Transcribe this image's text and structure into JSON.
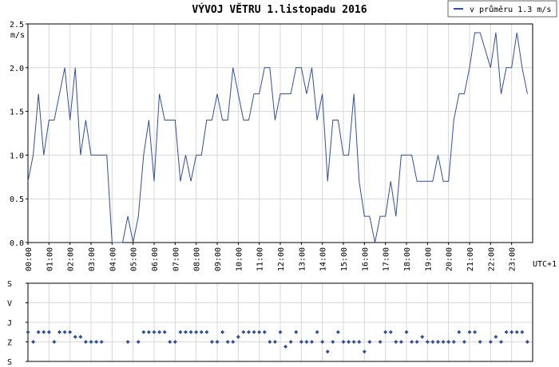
{
  "chart_data": [
    {
      "type": "line",
      "title": "VÝVOJ VĚTRU  1.listopadu 2016",
      "y_label": "m/s",
      "x_label": "UTC+1",
      "x": [
        0,
        0.25,
        0.5,
        0.75,
        1,
        1.25,
        1.5,
        1.75,
        2,
        2.25,
        2.5,
        2.75,
        3,
        3.25,
        3.5,
        3.75,
        4,
        4.25,
        4.5,
        4.75,
        5,
        5.25,
        5.5,
        5.75,
        6,
        6.25,
        6.5,
        6.75,
        7,
        7.25,
        7.5,
        7.75,
        8,
        8.25,
        8.5,
        8.75,
        9,
        9.25,
        9.5,
        9.75,
        10,
        10.25,
        10.5,
        10.75,
        11,
        11.25,
        11.5,
        11.75,
        12,
        12.25,
        12.5,
        12.75,
        13,
        13.25,
        13.5,
        13.75,
        14,
        14.25,
        14.5,
        14.75,
        15,
        15.25,
        15.5,
        15.75,
        16,
        16.25,
        16.5,
        16.75,
        17,
        17.25,
        17.5,
        17.75,
        18,
        18.25,
        18.5,
        18.75,
        19,
        19.25,
        19.5,
        19.75,
        20,
        20.25,
        20.5,
        20.75,
        21,
        21.25,
        21.5,
        21.75,
        22,
        22.25,
        22.5,
        22.75,
        23,
        23.25,
        23.5,
        23.75
      ],
      "series": [
        {
          "name": "v průměru 1.3 m/s",
          "color": "#2f4f9f",
          "values": [
            0.7,
            1.0,
            1.7,
            1.0,
            1.4,
            1.4,
            1.7,
            2.0,
            1.4,
            2.0,
            1.0,
            1.4,
            1.0,
            1.0,
            1.0,
            1.0,
            0.0,
            0.0,
            0.0,
            0.3,
            0.0,
            0.3,
            1.0,
            1.4,
            0.7,
            1.7,
            1.4,
            1.4,
            1.4,
            0.7,
            1.0,
            0.7,
            1.0,
            1.0,
            1.4,
            1.4,
            1.7,
            1.4,
            1.4,
            2.0,
            1.7,
            1.4,
            1.4,
            1.7,
            1.7,
            2.0,
            2.0,
            1.4,
            1.7,
            1.7,
            1.7,
            2.0,
            2.0,
            1.7,
            2.0,
            1.4,
            1.7,
            0.7,
            1.4,
            1.4,
            1.0,
            1.0,
            1.7,
            0.7,
            0.3,
            0.3,
            0.0,
            0.3,
            0.3,
            0.7,
            0.3,
            1.0,
            1.0,
            1.0,
            0.7,
            0.7,
            0.7,
            0.7,
            1.0,
            0.7,
            0.7,
            1.4,
            1.7,
            1.7,
            2.0,
            2.4,
            2.4,
            2.2,
            2.0,
            2.4,
            1.7,
            2.0,
            2.0,
            2.4,
            2.0,
            1.7
          ]
        }
      ],
      "xlim": [
        0,
        24
      ],
      "xticks": [
        {
          "value": 0,
          "label": "00:00"
        },
        {
          "value": 1,
          "label": "01:00"
        },
        {
          "value": 2,
          "label": "02:00"
        },
        {
          "value": 3,
          "label": "03:00"
        },
        {
          "value": 4,
          "label": "04:00"
        },
        {
          "value": 5,
          "label": "05:00"
        },
        {
          "value": 6,
          "label": "06:00"
        },
        {
          "value": 7,
          "label": "07:00"
        },
        {
          "value": 8,
          "label": "08:00"
        },
        {
          "value": 9,
          "label": "09:00"
        },
        {
          "value": 10,
          "label": "10:00"
        },
        {
          "value": 11,
          "label": "11:00"
        },
        {
          "value": 12,
          "label": "12:00"
        },
        {
          "value": 13,
          "label": "13:00"
        },
        {
          "value": 14,
          "label": "14:00"
        },
        {
          "value": 15,
          "label": "15:00"
        },
        {
          "value": 16,
          "label": "16:00"
        },
        {
          "value": 17,
          "label": "17:00"
        },
        {
          "value": 18,
          "label": "18:00"
        },
        {
          "value": 19,
          "label": "19:00"
        },
        {
          "value": 20,
          "label": "20:00"
        },
        {
          "value": 21,
          "label": "21:00"
        },
        {
          "value": 22,
          "label": "22:00"
        },
        {
          "value": 23,
          "label": "23:00"
        }
      ],
      "ylim": [
        0,
        2.5
      ],
      "yticks": [
        {
          "value": 0,
          "label": "0.0"
        },
        {
          "value": 0.5,
          "label": "0.5"
        },
        {
          "value": 1,
          "label": "1.0"
        },
        {
          "value": 1.5,
          "label": "1.5"
        },
        {
          "value": 2,
          "label": "2.0"
        },
        {
          "value": 2.5,
          "label": "2.5"
        }
      ],
      "grid": true,
      "legend": "top-right"
    },
    {
      "type": "scatter",
      "x": [
        0,
        0.25,
        0.5,
        0.75,
        1,
        1.25,
        1.5,
        1.75,
        2,
        2.25,
        2.5,
        2.75,
        3,
        3.25,
        3.5,
        3.75,
        4,
        4.25,
        4.5,
        4.75,
        5,
        5.25,
        5.5,
        5.75,
        6,
        6.25,
        6.5,
        6.75,
        7,
        7.25,
        7.5,
        7.75,
        8,
        8.25,
        8.5,
        8.75,
        9,
        9.25,
        9.5,
        9.75,
        10,
        10.25,
        10.5,
        10.75,
        11,
        11.25,
        11.5,
        11.75,
        12,
        12.25,
        12.5,
        12.75,
        13,
        13.25,
        13.5,
        13.75,
        14,
        14.25,
        14.5,
        14.75,
        15,
        15.25,
        15.5,
        15.75,
        16,
        16.25,
        16.5,
        16.75,
        17,
        17.25,
        17.5,
        17.75,
        18,
        18.25,
        18.5,
        18.75,
        19,
        19.25,
        19.5,
        19.75,
        20,
        20.25,
        20.5,
        20.75,
        21,
        21.25,
        21.5,
        21.75,
        22,
        22.25,
        22.5,
        22.75,
        23,
        23.25,
        23.5,
        23.75
      ],
      "values": [
        225,
        270,
        225,
        225,
        225,
        270,
        225,
        225,
        225,
        247,
        247,
        270,
        270,
        270,
        270,
        null,
        null,
        null,
        null,
        270,
        null,
        270,
        225,
        225,
        225,
        225,
        225,
        270,
        270,
        225,
        225,
        225,
        225,
        225,
        225,
        270,
        270,
        225,
        270,
        270,
        247,
        225,
        225,
        225,
        225,
        225,
        270,
        270,
        225,
        292,
        270,
        225,
        270,
        270,
        270,
        225,
        270,
        315,
        270,
        225,
        270,
        270,
        270,
        270,
        315,
        270,
        null,
        270,
        225,
        225,
        270,
        270,
        225,
        270,
        270,
        247,
        270,
        270,
        270,
        270,
        270,
        270,
        225,
        270,
        225,
        225,
        270,
        null,
        270,
        247,
        270,
        225,
        225,
        225,
        225,
        270
      ],
      "color": "#2f4f9f",
      "xlim": [
        0,
        24
      ],
      "ylim": [
        360,
        0
      ],
      "yticks": [
        {
          "value": 0,
          "label": "S"
        },
        {
          "value": 90,
          "label": "V"
        },
        {
          "value": 180,
          "label": "J"
        },
        {
          "value": 270,
          "label": "Z"
        },
        {
          "value": 360,
          "label": "S"
        }
      ],
      "grid": true
    }
  ]
}
